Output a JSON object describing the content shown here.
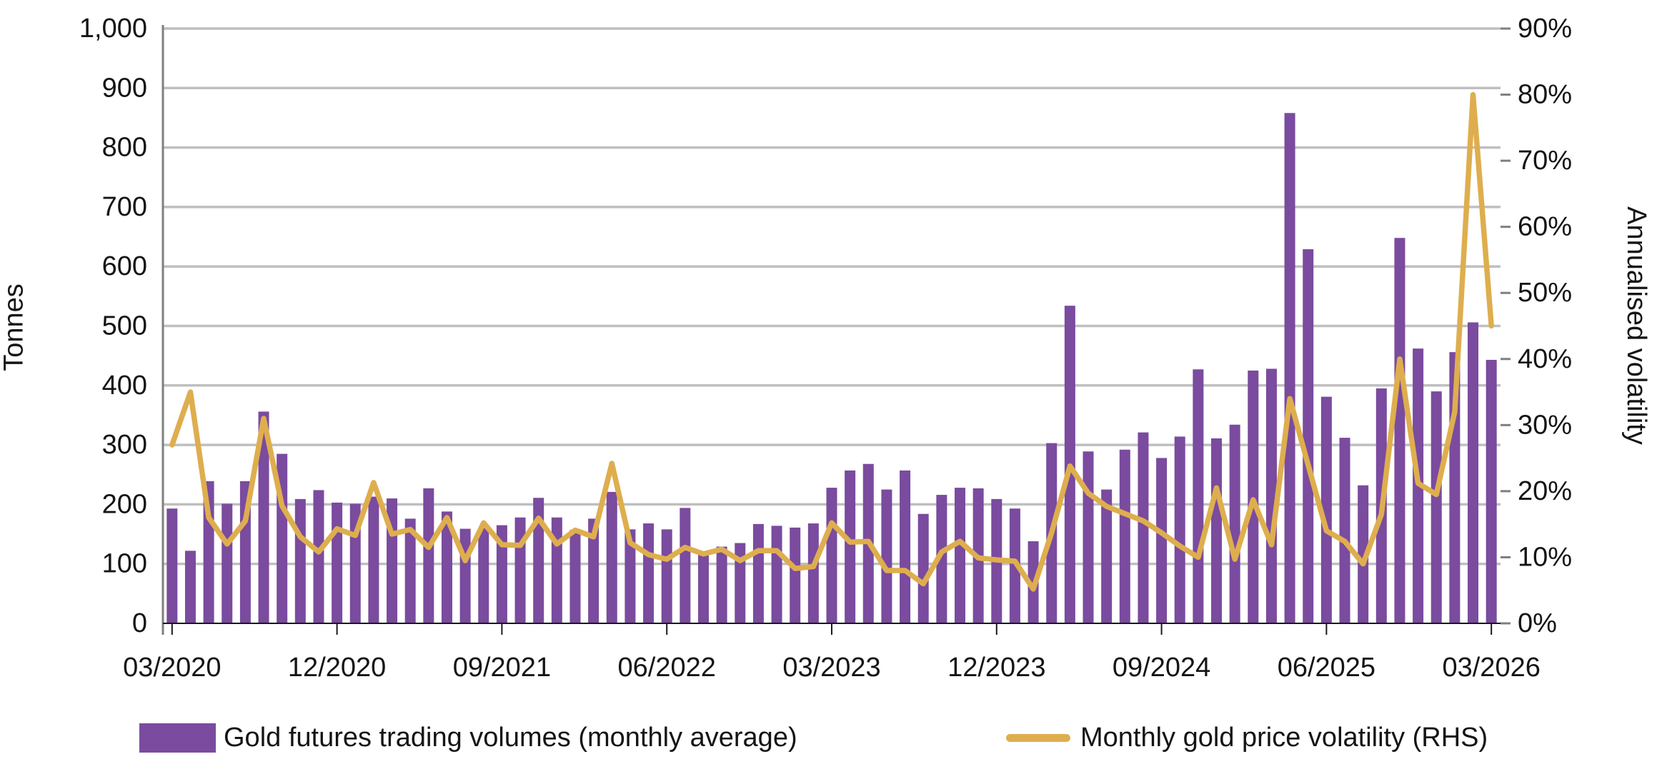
{
  "chart_data": {
    "type": "bar",
    "title": "",
    "categories": [
      "03/2020",
      "04/2020",
      "05/2020",
      "06/2020",
      "07/2020",
      "08/2020",
      "09/2020",
      "10/2020",
      "11/2020",
      "12/2020",
      "01/2021",
      "02/2021",
      "03/2021",
      "04/2021",
      "05/2021",
      "06/2021",
      "07/2021",
      "08/2021",
      "09/2021",
      "10/2021",
      "11/2021",
      "12/2021",
      "01/2022",
      "02/2022",
      "03/2022",
      "04/2022",
      "05/2022",
      "06/2022",
      "07/2022",
      "08/2022",
      "09/2022",
      "10/2022",
      "11/2022",
      "12/2022",
      "01/2023",
      "02/2023",
      "03/2023",
      "04/2023",
      "05/2023",
      "06/2023",
      "07/2023",
      "08/2023",
      "09/2023",
      "10/2023",
      "11/2023",
      "12/2023",
      "01/2024",
      "02/2024",
      "03/2024",
      "04/2024",
      "05/2024",
      "06/2024",
      "07/2024",
      "08/2024",
      "09/2024",
      "10/2024",
      "11/2024",
      "12/2024",
      "01/2025",
      "02/2025",
      "03/2025",
      "04/2025",
      "05/2025",
      "06/2025",
      "07/2025",
      "08/2025",
      "09/2025",
      "10/2025",
      "11/2025",
      "12/2025",
      "01/2026",
      "02/2026",
      "03/2026"
    ],
    "series": [
      {
        "name": "Gold futures trading volumes (monthly average)",
        "kind": "bar",
        "axis": "left",
        "unit": "tonnes",
        "values": [
          193,
          122,
          239,
          201,
          239,
          356,
          285,
          209,
          224,
          203,
          201,
          213,
          210,
          176,
          227,
          188,
          159,
          160,
          165,
          178,
          211,
          178,
          157,
          176,
          221,
          158,
          168,
          158,
          194,
          121,
          129,
          135,
          167,
          164,
          161,
          168,
          228,
          257,
          268,
          225,
          257,
          184,
          216,
          228,
          227,
          209,
          193,
          138,
          303,
          534,
          289,
          225,
          292,
          321,
          278,
          314,
          427,
          311,
          334,
          425,
          428,
          858,
          629,
          381,
          312,
          232,
          395,
          648,
          462,
          390,
          456,
          506,
          443
        ]
      },
      {
        "name": "Monthly gold price volatility (RHS)",
        "kind": "line",
        "axis": "right",
        "unit": "%",
        "values": [
          27,
          35,
          16,
          12,
          15.5,
          31,
          17.8,
          13.1,
          10.8,
          14.3,
          13.3,
          21.3,
          13.5,
          14.2,
          11.5,
          16,
          9.5,
          15.2,
          11.9,
          11.8,
          15.9,
          12,
          14.1,
          13.1,
          24.2,
          12.2,
          10.4,
          9.7,
          11.5,
          10.5,
          11.2,
          9.5,
          11,
          11,
          8.3,
          8.6,
          15.2,
          12.3,
          12.4,
          8,
          8,
          6,
          10.8,
          12.4,
          9.9,
          9.6,
          9.4,
          5.2,
          13.7,
          23.8,
          19.7,
          17.7,
          16.6,
          15.5,
          13.7,
          11.7,
          10,
          20.5,
          9.7,
          18.7,
          11.9,
          34,
          24,
          14,
          12.4,
          9,
          16.5,
          40,
          21.2,
          19.5,
          32,
          80,
          45
        ]
      }
    ],
    "ylabel_left": "Tonnes",
    "ylabel_right": "Annualised volatility",
    "ylim_left": [
      0,
      1000
    ],
    "ylim_right": [
      0,
      90
    ],
    "yticks_left": [
      "0",
      "100",
      "200",
      "300",
      "400",
      "500",
      "600",
      "700",
      "800",
      "900",
      "1,000"
    ],
    "yticks_right": [
      "0%",
      "10%",
      "20%",
      "30%",
      "40%",
      "50%",
      "60%",
      "70%",
      "80%",
      "90%"
    ],
    "xticks": [
      "03/2020",
      "12/2020",
      "09/2021",
      "06/2022",
      "03/2023",
      "12/2023",
      "09/2024",
      "06/2025",
      "03/2026"
    ],
    "xtick_every": 9,
    "grid": "horizontal",
    "legend_position": "bottom"
  },
  "legend": {
    "volumes_label": "Gold futures trading volumes (monthly average)",
    "volatility_label": "Monthly gold price volatility (RHS)"
  },
  "colors": {
    "bar": "#7A4B9E",
    "line": "#DEAE4E",
    "gridline": "#BFBFBF",
    "axis_line": "#7F7F7F",
    "baseline": "#1A1A1A",
    "text": "#141414",
    "background": "#FFFFFF"
  }
}
